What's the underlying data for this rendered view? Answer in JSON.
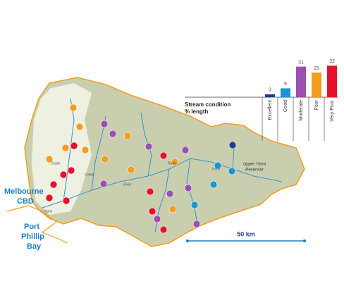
{
  "map": {
    "city_label": [
      "Melbourne",
      "CBD"
    ],
    "bay_label": [
      "Port",
      "Phillip",
      "Bay"
    ],
    "reservoir_label": [
      "Upper Yarra",
      "Reservoir"
    ],
    "river_labels": [
      "Yarra",
      "Yarra",
      "River",
      "River",
      "Creek",
      "Creek"
    ],
    "scale_label": "50 km"
  },
  "chart_data": {
    "type": "bar",
    "title": "Stream condition",
    "subtitle": "% length",
    "categories": [
      "Excellent",
      "Good",
      "Moderate",
      "Poor",
      "Very Poor"
    ],
    "values": [
      3,
      9,
      31,
      25,
      32
    ],
    "colors": [
      "#1f3f8f",
      "#1a95d3",
      "#9b4fb0",
      "#f39c1e",
      "#e8112d"
    ]
  }
}
